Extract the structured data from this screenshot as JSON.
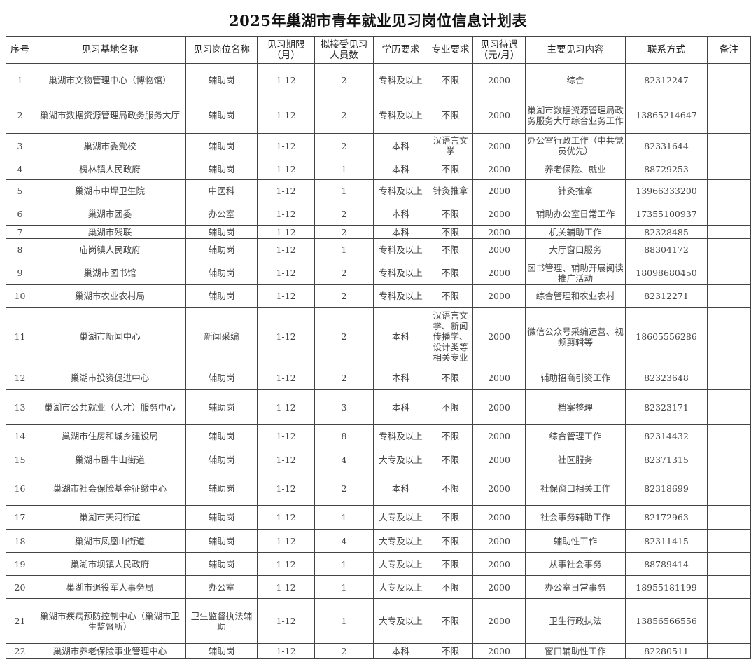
{
  "title": "2025年巢湖市青年就业见习岗位信息计划表",
  "headers": [
    "序号",
    "见习基地名称",
    "见习岗位名称",
    "见习期限（月）",
    "拟接受见习人员数",
    "学历要求",
    "专业要求",
    "见习待遇（元/月）",
    "主要见习内容",
    "联系方式",
    "备注"
  ],
  "rows": [
    [
      "1",
      "巢湖市文物管理中心（博物馆）",
      "辅助岗",
      "1-12",
      "2",
      "专科及以上",
      "不限",
      "2000",
      "综合",
      "82312247",
      ""
    ],
    [
      "2",
      "巢湖市数据资源管理局政务服务大厅",
      "辅助岗",
      "1-12",
      "2",
      "专科及以上",
      "不限",
      "2000",
      "巢湖市数据资源管理局政务服务大厅综合业务工作",
      "13865214647",
      ""
    ],
    [
      "3",
      "巢湖市委党校",
      "辅助岗",
      "1-12",
      "2",
      "本科",
      "汉语言文学",
      "2000",
      "办公室行政工作（中共党员优先）",
      "82331644",
      ""
    ],
    [
      "4",
      "槐林镇人民政府",
      "辅助岗",
      "1-12",
      "1",
      "本科",
      "不限",
      "2000",
      "养老保险、就业",
      "88729253",
      ""
    ],
    [
      "5",
      "巢湖市中垾卫生院",
      "中医科",
      "1-12",
      "1",
      "专科及以上",
      "针灸推拿",
      "2000",
      "针灸推拿",
      "13966333200",
      ""
    ],
    [
      "6",
      "巢湖市团委",
      "办公室",
      "1-12",
      "2",
      "本科",
      "不限",
      "2000",
      "辅助办公室日常工作",
      "17355100937",
      ""
    ],
    [
      "7",
      "巢湖市残联",
      "辅助岗",
      "1-12",
      "2",
      "本科",
      "不限",
      "2000",
      "机关辅助工作",
      "82328485",
      ""
    ],
    [
      "8",
      "庙岗镇人民政府",
      "辅助岗",
      "1-12",
      "1",
      "专科及以上",
      "不限",
      "2000",
      "大厅窗口服务",
      "88304172",
      ""
    ],
    [
      "9",
      "巢湖市图书馆",
      "辅助岗",
      "1-12",
      "2",
      "专科及以上",
      "不限",
      "2000",
      "图书管理、辅助开展阅读推广活动",
      "18098680450",
      ""
    ],
    [
      "10",
      "巢湖市农业农村局",
      "辅助岗",
      "1-12",
      "2",
      "专科及以上",
      "不限",
      "2000",
      "综合管理和农业农村",
      "82312271",
      ""
    ],
    [
      "11",
      "巢湖市新闻中心",
      "新闻采编",
      "1-12",
      "2",
      "本科",
      "汉语言文学、新闻传播学、设计类等相关专业",
      "2000",
      "微信公众号采编运营、视频剪辑等",
      "18605556286",
      ""
    ],
    [
      "12",
      "巢湖市投资促进中心",
      "辅助岗",
      "1-12",
      "2",
      "本科",
      "不限",
      "2000",
      "辅助招商引资工作",
      "82323648",
      ""
    ],
    [
      "13",
      "巢湖市公共就业（人才）服务中心",
      "辅助岗",
      "1-12",
      "3",
      "本科",
      "不限",
      "2000",
      "档案整理",
      "82323171",
      ""
    ],
    [
      "14",
      "巢湖市住房和城乡建设局",
      "辅助岗",
      "1-12",
      "8",
      "专科及以上",
      "不限",
      "2000",
      "综合管理工作",
      "82314432",
      ""
    ],
    [
      "15",
      "巢湖市卧牛山街道",
      "辅助岗",
      "1-12",
      "4",
      "大专及以上",
      "不限",
      "2000",
      "社区服务",
      "82371315",
      ""
    ],
    [
      "16",
      "巢湖市社会保险基金征缴中心",
      "辅助岗",
      "1-12",
      "2",
      "本科",
      "不限",
      "2000",
      "社保窗口相关工作",
      "82318699",
      ""
    ],
    [
      "17",
      "巢湖市天河街道",
      "辅助岗",
      "1-12",
      "1",
      "大专及以上",
      "不限",
      "2000",
      "社会事务辅助工作",
      "82172963",
      ""
    ],
    [
      "18",
      "巢湖市凤凰山街道",
      "辅助岗",
      "1-12",
      "4",
      "大专及以上",
      "不限",
      "2000",
      "辅助性工作",
      "82311415",
      ""
    ],
    [
      "19",
      "巢湖市坝镇人民政府",
      "辅助岗",
      "1-12",
      "1",
      "大专及以上",
      "不限",
      "2000",
      "从事社会事务",
      "88789414",
      ""
    ],
    [
      "20",
      "巢湖市退役军人事务局",
      "办公室",
      "1-12",
      "1",
      "大专及以上",
      "不限",
      "2000",
      "办公室日常事务",
      "18955181199",
      ""
    ],
    [
      "21",
      "巢湖市疾病预防控制中心（巢湖市卫生监督所）",
      "卫生监督执法辅助",
      "1-12",
      "1",
      "大专及以上",
      "不限",
      "2000",
      "卫生行政执法",
      "13856566556",
      ""
    ],
    [
      "22",
      "巢湖市养老保险事业管理中心",
      "辅助岗",
      "1-12",
      "2",
      "本科",
      "不限",
      "2000",
      "窗口辅助性工作",
      "82280511",
      ""
    ]
  ]
}
